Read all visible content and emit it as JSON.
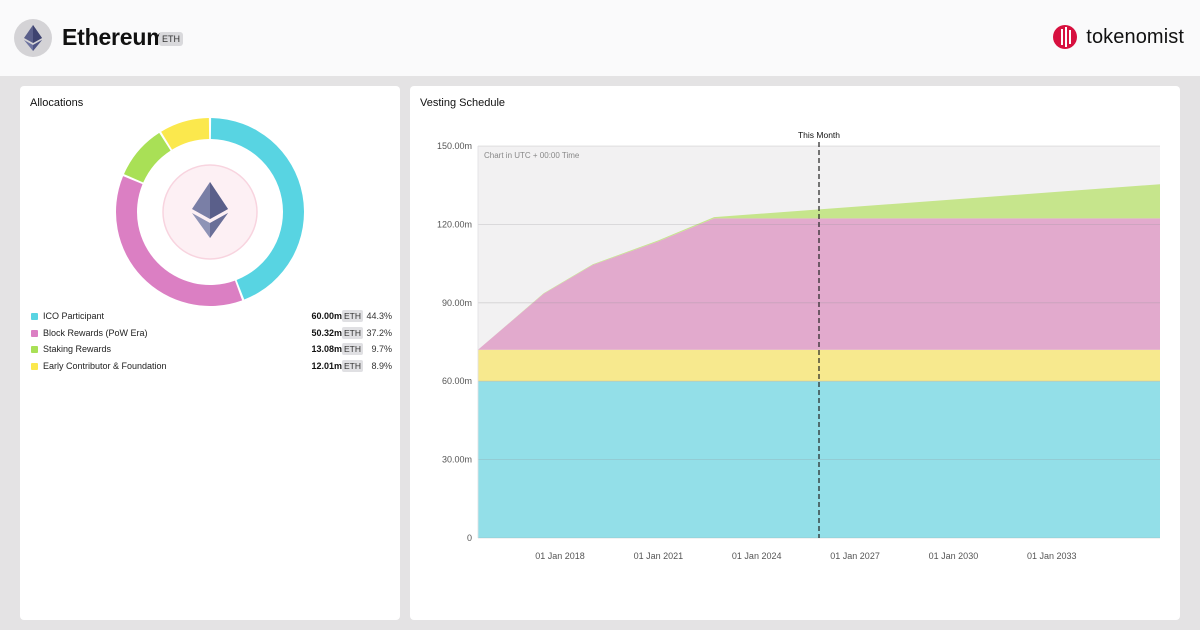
{
  "header": {
    "token_name": "Ethereum",
    "symbol": "ETH",
    "logo_icon": "ethereum-icon",
    "brand_name": "tokenomist",
    "brand_icon": "tokenomist-logo-icon",
    "brand_color": "#d7103f"
  },
  "allocations": {
    "title": "Allocations",
    "center_icon": "ethereum-icon",
    "items": [
      {
        "label": "ICO Participant",
        "amount": "60.00m",
        "unit": "ETH",
        "percent": "44.3%",
        "color": "#58d4e2"
      },
      {
        "label": "Block Rewards (PoW Era)",
        "amount": "50.32m",
        "unit": "ETH",
        "percent": "37.2%",
        "color": "#db7fc3"
      },
      {
        "label": "Staking Rewards",
        "amount": "13.08m",
        "unit": "ETH",
        "percent": "9.7%",
        "color": "#a9e056"
      },
      {
        "label": "Early Contributor & Foundation",
        "amount": "12.01m",
        "unit": "ETH",
        "percent": "8.9%",
        "color": "#fbe84d"
      }
    ]
  },
  "chart_data": [
    {
      "type": "pie",
      "categories": [
        "ICO Participant",
        "Block Rewards (PoW Era)",
        "Staking Rewards",
        "Early Contributor & Foundation"
      ],
      "values": [
        44.3,
        37.2,
        9.7,
        8.9
      ],
      "colors": [
        "#58d4e2",
        "#db7fc3",
        "#a9e056",
        "#fbe84d"
      ]
    },
    {
      "type": "area",
      "title": "Vesting Schedule",
      "annotation": "Chart in UTC + 00:00 Time",
      "marker": {
        "label": "This Month",
        "x": 2025.9
      },
      "xlim": [
        2015.5,
        2036.3
      ],
      "ylim": [
        0,
        150
      ],
      "yticks": [
        0,
        30,
        60,
        90,
        120,
        150
      ],
      "ytick_labels": [
        "0",
        "30.00m",
        "60.00m",
        "90.00m",
        "120.00m",
        "150.00m"
      ],
      "xticks": [
        2018,
        2021,
        2024,
        2027,
        2030,
        2033
      ],
      "xtick_labels": [
        "01 Jan 2018",
        "01 Jan 2021",
        "01 Jan 2024",
        "01 Jan 2027",
        "01 Jan 2030",
        "01 Jan 2033"
      ],
      "grid": true,
      "stacked": true,
      "series": [
        {
          "values_x": [
            2015.5,
            2036.3
          ],
          "values": [
            60,
            60
          ],
          "color": "#93dfe8"
        },
        {
          "values_x": [
            2015.5,
            2036.3
          ],
          "values": [
            12,
            12
          ],
          "color": "#f7e98e"
        },
        {
          "values_x": [
            2015.5,
            2017.5,
            2019.0,
            2021.0,
            2022.7,
            2036.3
          ],
          "values": [
            0,
            21.5,
            32.5,
            41.5,
            50.3,
            50.3
          ],
          "color": "#e2aacd"
        },
        {
          "values_x": [
            2015.5,
            2022.7,
            2036.3
          ],
          "values": [
            0,
            0.5,
            13.1
          ],
          "color": "#c6e58c"
        }
      ]
    }
  ]
}
